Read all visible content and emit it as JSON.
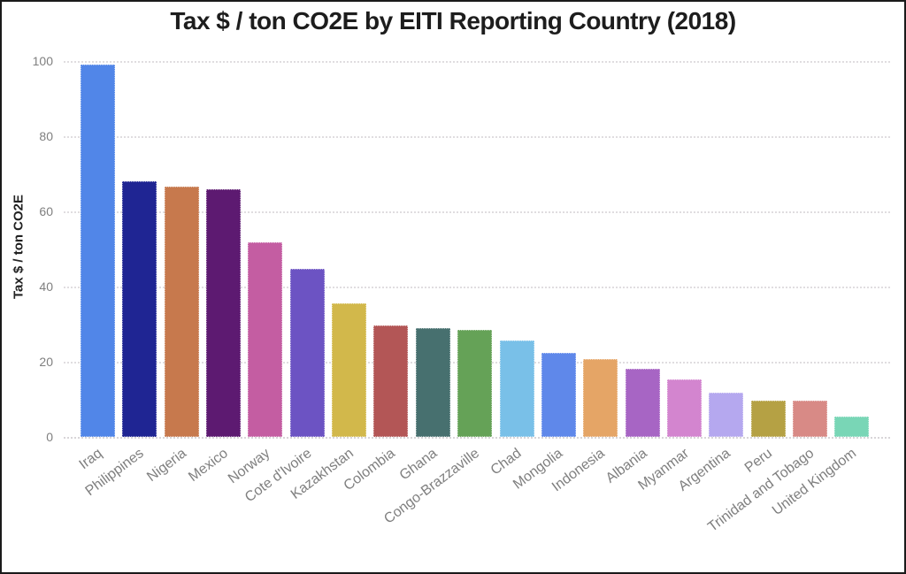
{
  "chart_data": {
    "type": "bar",
    "title": "Tax $ / ton CO2E by EITI Reporting Country (2018)",
    "xlabel": "",
    "ylabel": "Tax $ / ton CO2E",
    "ylim": [
      0,
      100
    ],
    "yticks": [
      0,
      20,
      40,
      60,
      80,
      100
    ],
    "grid": "horizontal-dotted",
    "legend_position": "none",
    "categories": [
      "Iraq",
      "Philippines",
      "Nigeria",
      "Mexico",
      "Norway",
      "Cote d'Ivoire",
      "Kazakhstan",
      "Colombia",
      "Ghana",
      "Congo-Brazzaville",
      "Chad",
      "Mongolia",
      "Indonesia",
      "Albania",
      "Myanmar",
      "Argentina",
      "Peru",
      "Trinidad and Tobago",
      "United Kingdom"
    ],
    "values": [
      99,
      68,
      66.5,
      65.8,
      51.8,
      44.8,
      35.5,
      29.6,
      28.9,
      28.4,
      25.6,
      22.3,
      20.7,
      18.1,
      15.4,
      11.7,
      9.7,
      9.6,
      5.3
    ],
    "colors": [
      "#5186e8",
      "#1f2593",
      "#c7794d",
      "#5d1a71",
      "#c45da2",
      "#6c53c3",
      "#d2b84b",
      "#b35656",
      "#47706f",
      "#65a257",
      "#79c0e8",
      "#5f88ea",
      "#e5a566",
      "#a765c4",
      "#d385cf",
      "#b5a8ef",
      "#b5a144",
      "#d88a86",
      "#79d6b6"
    ]
  },
  "frame": {
    "background": "#ffffff",
    "border_color": "#1a1a1a",
    "gridline_color": "#e0dde0",
    "tick_text_color": "#7f7f7f",
    "title_color": "#1d1d1d"
  }
}
